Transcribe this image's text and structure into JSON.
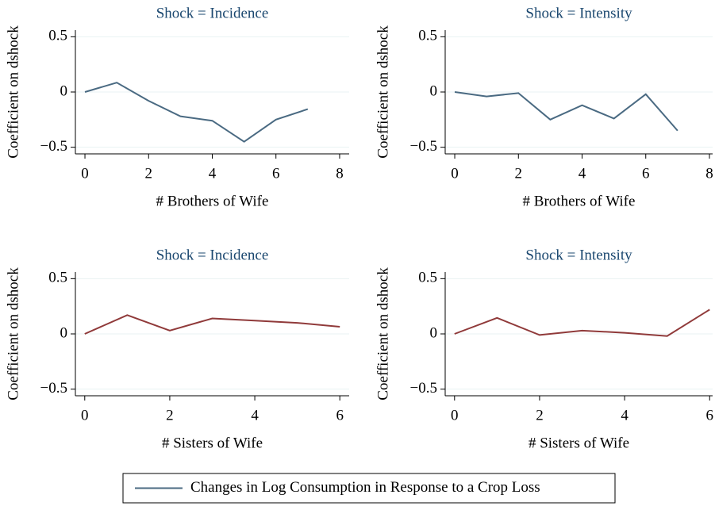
{
  "chart_data": [
    {
      "type": "line",
      "title": "Shock = Incidence",
      "x_label": "# Brothers of Wife",
      "y_label": "Coefficient on dshock",
      "x": [
        0,
        1,
        2,
        3,
        4,
        5,
        6,
        7
      ],
      "series": [
        {
          "color": "#4a6a82",
          "values": [
            0,
            0.085,
            -0.08,
            -0.22,
            -0.26,
            -0.45,
            -0.25,
            -0.155
          ]
        }
      ],
      "xlim": [
        -0.3,
        8.3
      ],
      "xticks": [
        0,
        2,
        4,
        6,
        8
      ],
      "ylim": [
        -0.56,
        0.56
      ],
      "yticks": [
        {
          "value": -0.5,
          "label": "−0.5"
        },
        0,
        0.5
      ],
      "grid": true
    },
    {
      "type": "line",
      "title": "Shock = Intensity",
      "x_label": "# Brothers of Wife",
      "y_label": "Coefficient on dshock",
      "x": [
        0,
        1,
        2,
        3,
        4,
        5,
        6,
        7
      ],
      "series": [
        {
          "color": "#4a6a82",
          "values": [
            0,
            -0.04,
            -0.01,
            -0.25,
            -0.12,
            -0.24,
            -0.02,
            -0.35
          ]
        }
      ],
      "xlim": [
        -0.3,
        8.1
      ],
      "xticks": [
        0,
        2,
        4,
        6,
        8
      ],
      "ylim": [
        -0.56,
        0.56
      ],
      "yticks": [
        {
          "value": -0.5,
          "label": "−0.5"
        },
        0,
        0.5
      ],
      "grid": true
    },
    {
      "type": "line",
      "title": "Shock = Incidence",
      "x_label": "# Sisters of Wife",
      "y_label": "Coefficient on dshock",
      "x": [
        0,
        1,
        2,
        3,
        4,
        5,
        6
      ],
      "series": [
        {
          "color": "#903a3a",
          "values": [
            0,
            0.17,
            0.03,
            0.14,
            0.12,
            0.1,
            0.065
          ]
        }
      ],
      "xlim": [
        -0.22,
        6.22
      ],
      "xticks": [
        0,
        2,
        4,
        6
      ],
      "ylim": [
        -0.56,
        0.56
      ],
      "yticks": [
        {
          "value": -0.5,
          "label": "−0.5"
        },
        0,
        0.5
      ],
      "grid": true
    },
    {
      "type": "line",
      "title": "Shock = Intensity",
      "x_label": "# Sisters of Wife",
      "y_label": "Coefficient on dshock",
      "x": [
        0,
        1,
        2,
        3,
        4,
        5,
        6
      ],
      "series": [
        {
          "color": "#903a3a",
          "values": [
            0,
            0.145,
            -0.01,
            0.03,
            0.01,
            -0.02,
            0.22
          ]
        }
      ],
      "xlim": [
        -0.22,
        6.07
      ],
      "xticks": [
        0,
        2,
        4,
        6
      ],
      "ylim": [
        -0.56,
        0.56
      ],
      "yticks": [
        {
          "value": -0.5,
          "label": "−0.5"
        },
        0,
        0.5
      ],
      "grid": true
    }
  ],
  "legend": {
    "label": "Changes in Log Consumption in Response to a Crop Loss",
    "color": "#4a6a82"
  }
}
